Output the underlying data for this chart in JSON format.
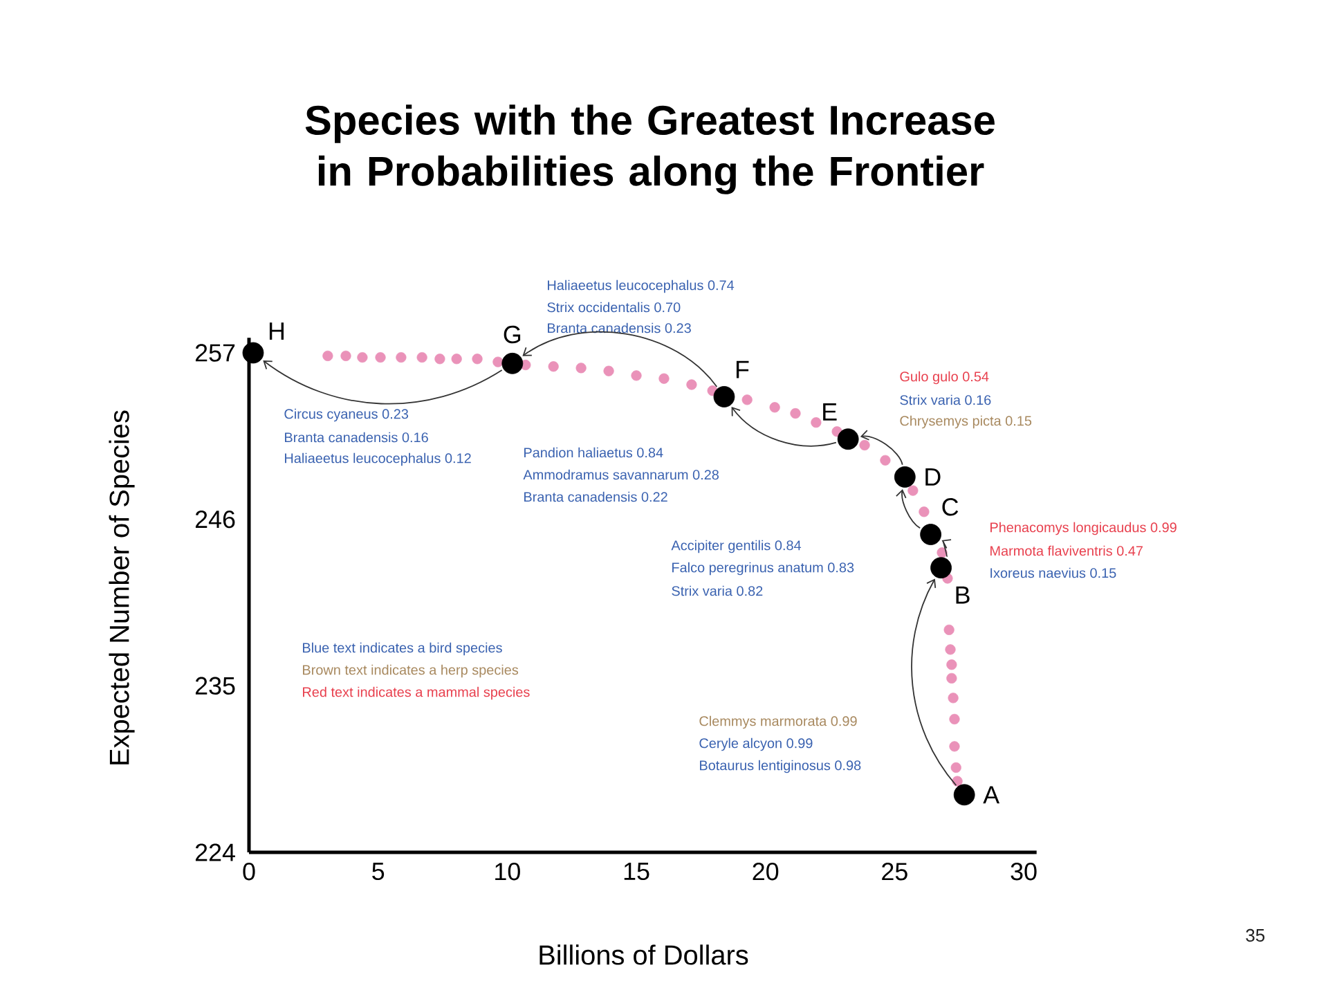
{
  "chart_data": {
    "type": "scatter",
    "title": "Species with the Greatest Increase in Probabilities along the Frontier",
    "xlabel": "Billions of Dollars",
    "ylabel": "Expected Number of Species",
    "xlim": [
      0,
      30.5
    ],
    "ylim": [
      224,
      258
    ],
    "xticks": [
      0,
      5,
      10,
      15,
      20,
      25,
      30
    ],
    "yticks": [
      224,
      235,
      246,
      257
    ],
    "series": [
      {
        "color": "#ea92b9",
        "x": [
          3.05,
          3.75,
          4.39,
          5.09,
          5.89,
          6.7,
          7.39,
          8.04,
          8.84,
          9.64,
          10.71,
          11.79,
          12.86,
          13.93,
          15.0,
          16.07,
          17.14,
          17.95,
          19.29,
          20.36,
          21.16,
          21.96,
          22.77,
          23.84,
          24.64,
          25.18,
          25.71,
          26.14,
          26.84,
          27.05,
          27.11,
          27.16,
          27.21,
          27.21,
          27.27,
          27.32,
          27.32,
          27.38,
          27.43
        ],
        "values": [
          256.8,
          256.8,
          256.7,
          256.7,
          256.7,
          256.7,
          256.6,
          256.6,
          256.6,
          256.4,
          256.2,
          256.1,
          256.0,
          255.8,
          255.5,
          255.3,
          254.9,
          254.5,
          253.9,
          253.4,
          253.0,
          252.4,
          251.8,
          250.9,
          249.9,
          null,
          247.9,
          246.5,
          243.8,
          242.1,
          238.7,
          237.4,
          236.4,
          235.5,
          234.2,
          232.8,
          231.0,
          229.6,
          228.7
        ]
      },
      {
        "color": "#000000",
        "x": [
          27.7,
          26.8,
          26.4,
          25.4,
          23.2,
          18.4,
          10.2,
          0.16
        ],
        "values": [
          227.8,
          242.8,
          245.0,
          248.8,
          251.3,
          254.1,
          256.3,
          257.0
        ]
      }
    ],
    "annotations": [
      "Haliaeetus leucocephalus 0.74",
      "Strix occidentalis 0.70",
      "Branta canadensis 0.23",
      "Circus cyaneus 0.23",
      "Branta canadensis 0.16",
      "Haliaeetus leucocephalus 0.12",
      "Pandion haliaetus 0.84",
      "Ammodramus savannarum 0.28",
      "Branta canadensis 0.22",
      "Accipiter gentilis 0.84",
      "Falco peregrinus anatum 0.83",
      "Strix varia 0.82",
      "Gulo gulo 0.54",
      "Strix varia 0.16",
      "Chrysemys picta 0.15",
      "Phenacomys longicaudus 0.99",
      "Marmota flaviventris 0.47",
      "Ixoreus naevius 0.15",
      "Clemmys marmorata 0.99",
      "Ceryle alcyon 0.99",
      "Botaurus lentiginosus 0.98",
      "Blue text indicates a bird species",
      "Brown text indicates a herp species",
      "Red text indicates a mammal species",
      "35",
      {
        "text": "A",
        "x": 27.7,
        "y": 227.8
      },
      {
        "text": "B",
        "x": 26.8,
        "y": 242.8
      },
      {
        "text": "C",
        "x": 26.4,
        "y": 245.0
      },
      {
        "text": "D",
        "x": 25.4,
        "y": 248.8
      },
      {
        "text": "E",
        "x": 23.2,
        "y": 251.3
      },
      {
        "text": "F",
        "x": 18.4,
        "y": 254.1
      },
      {
        "text": "G",
        "x": 10.2,
        "y": 256.3
      },
      {
        "text": "H",
        "x": 0.16,
        "y": 257.0
      }
    ]
  }
}
